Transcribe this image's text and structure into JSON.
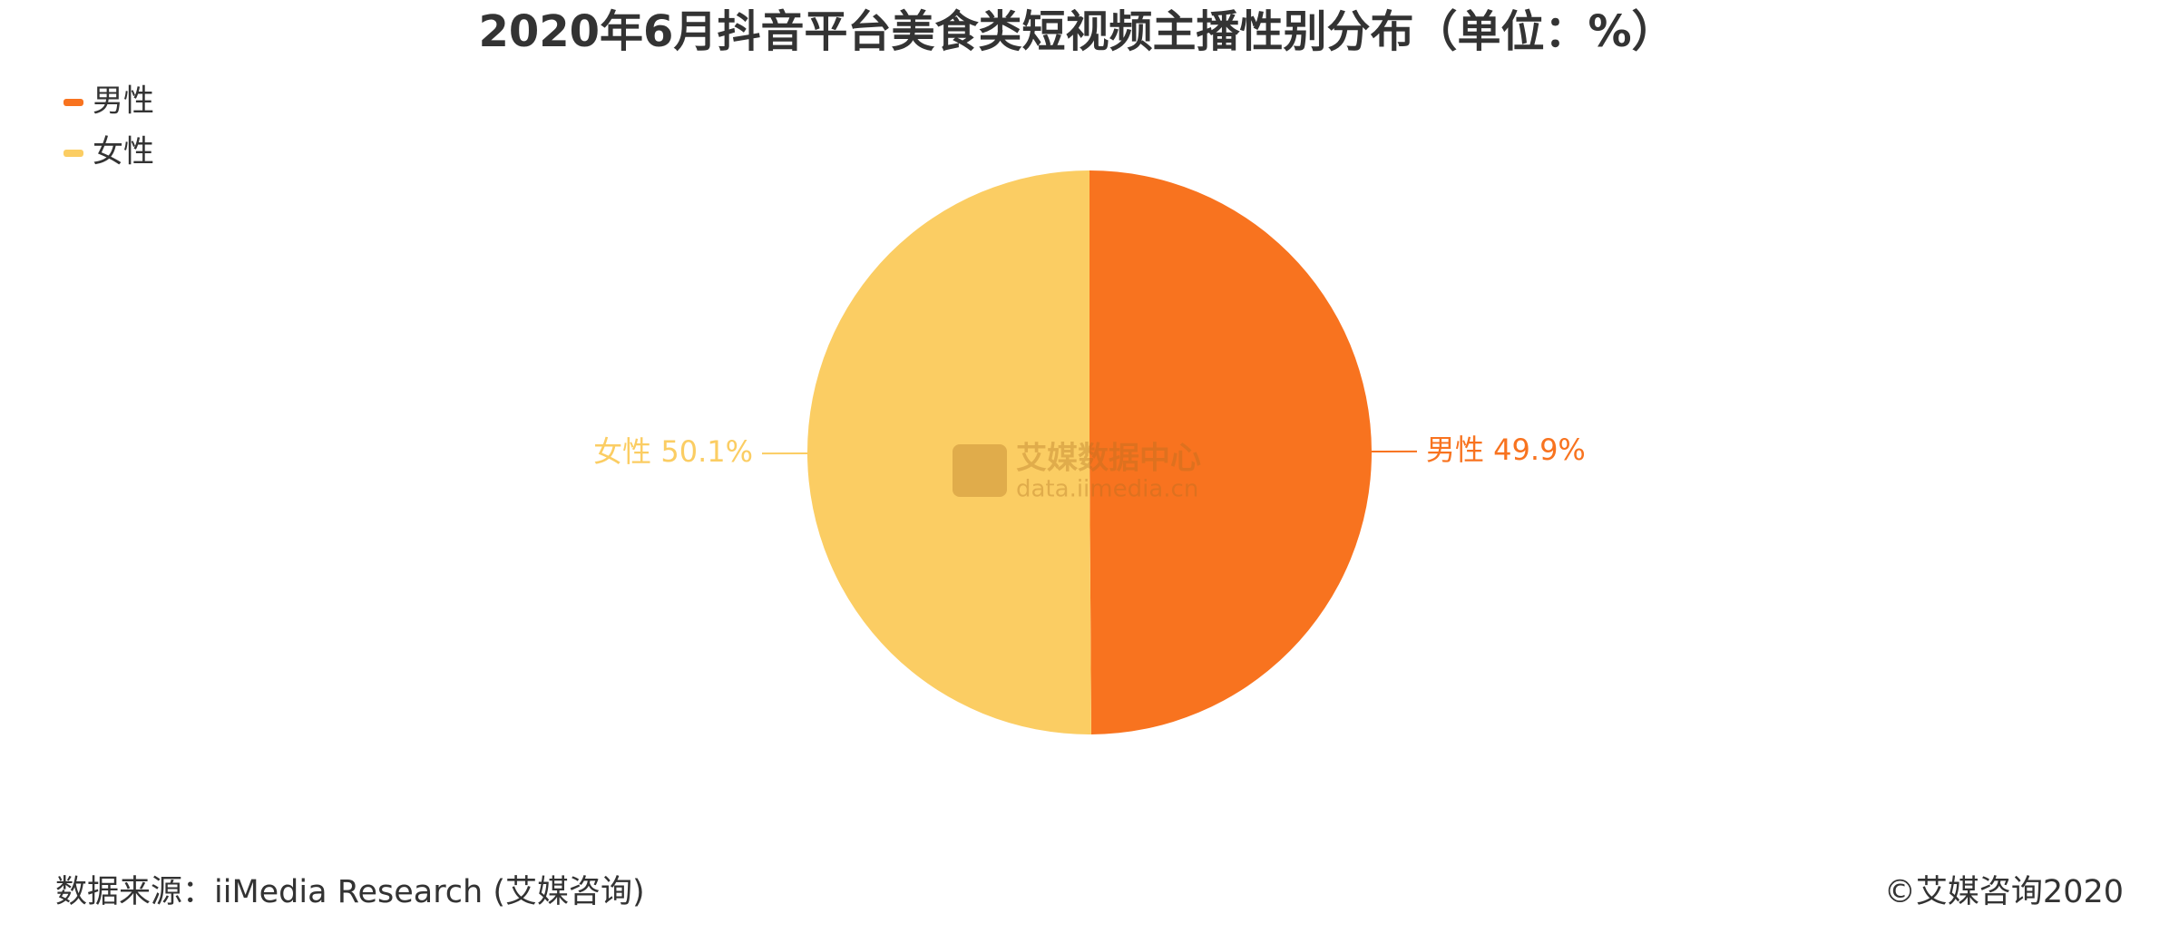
{
  "chart_data": {
    "type": "pie",
    "title": "2020年6月抖音平台美食类短视频主播性别分布（单位：%）",
    "categories": [
      "男性",
      "女性"
    ],
    "values": [
      49.9,
      50.1
    ],
    "value_labels": [
      "49.9%",
      "50.1%"
    ],
    "colors": [
      "#f8731f",
      "#fbcd63"
    ],
    "legend": "top-left",
    "watermark": {
      "name": "艾媒数据中心",
      "url": "data.iimedia.cn"
    },
    "source": "数据来源：iiMedia Research (艾媒咨询)",
    "copyright": "©艾媒咨询2020"
  }
}
